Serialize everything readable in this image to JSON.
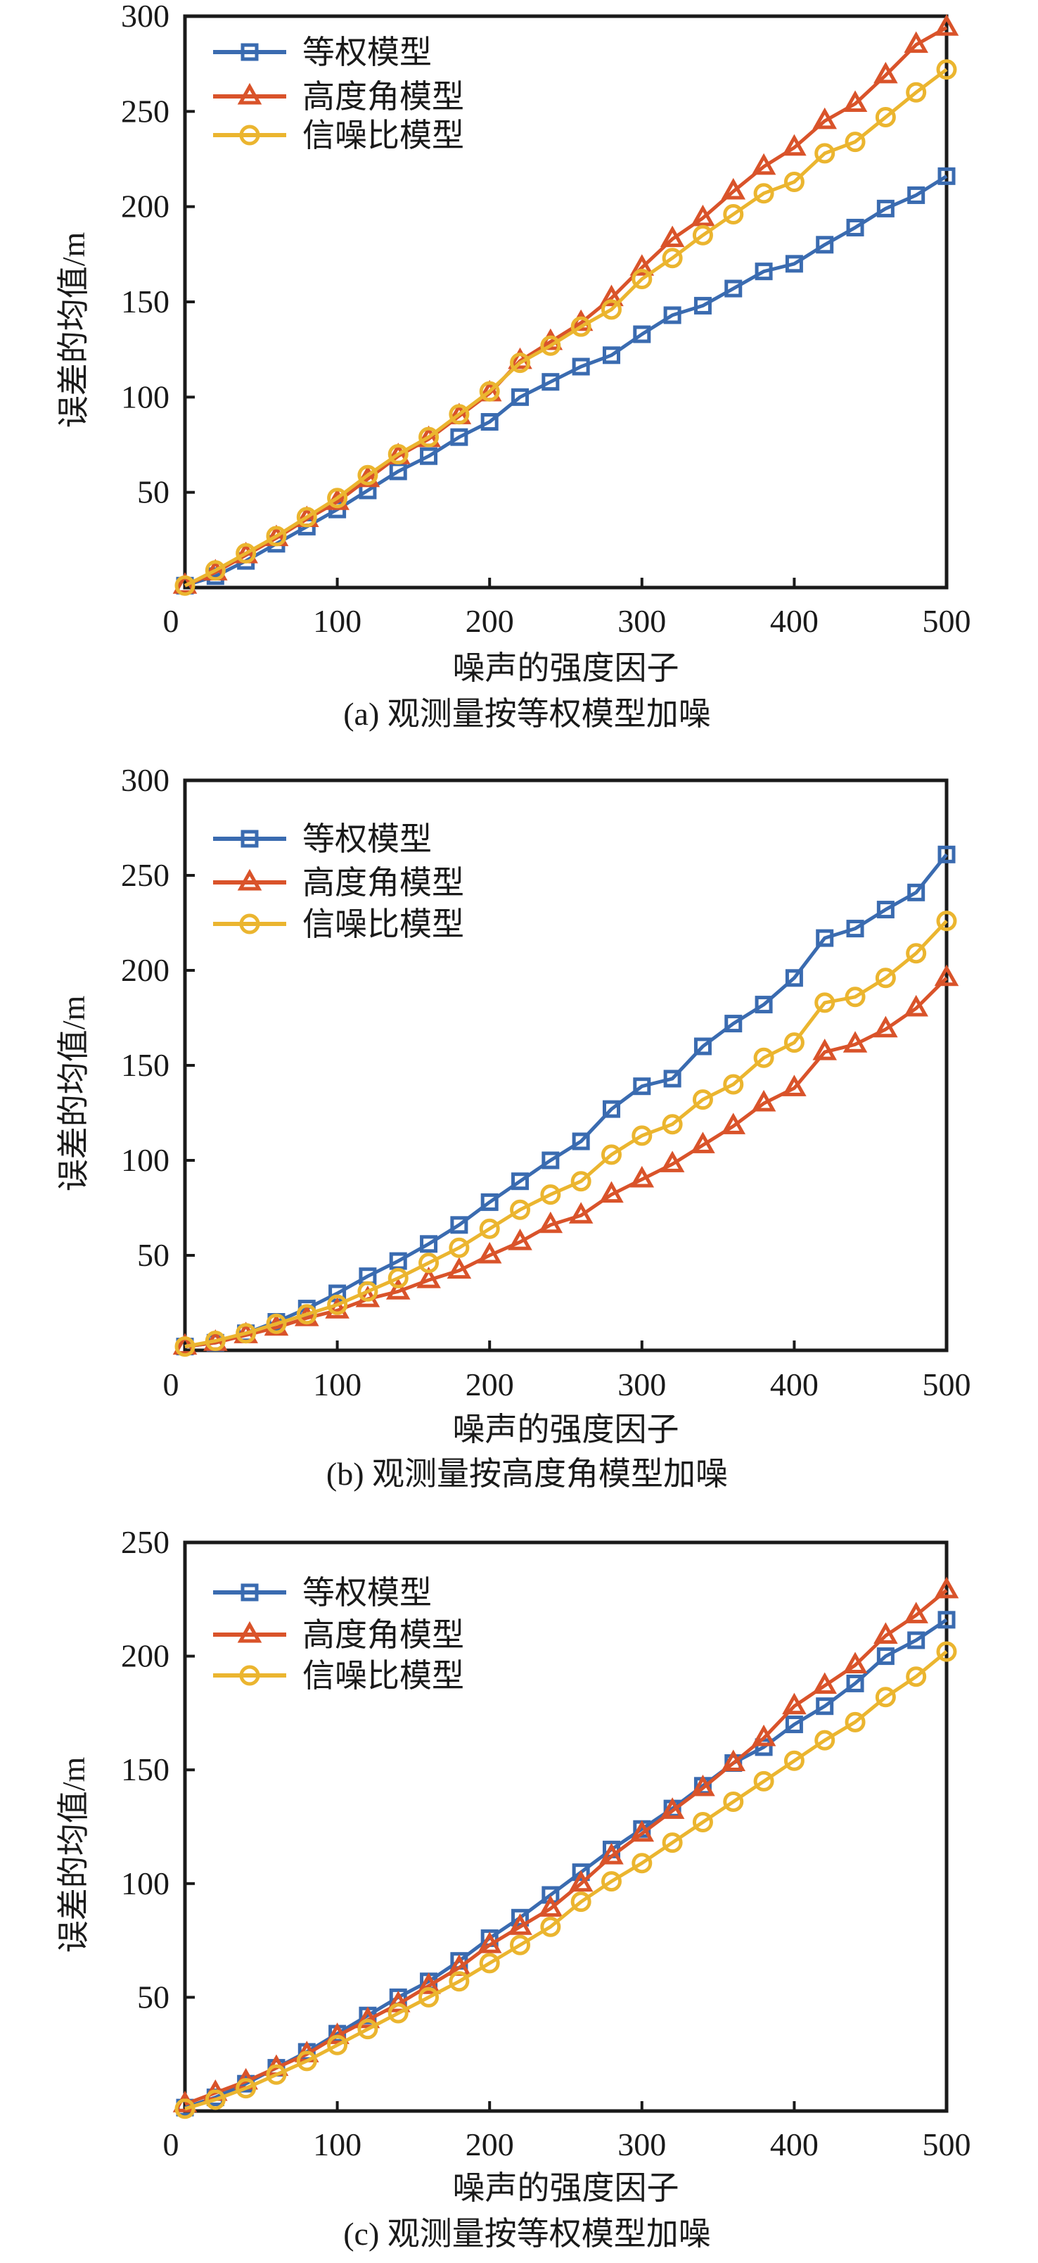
{
  "figure": {
    "panels": 3
  },
  "chart_data": [
    {
      "id": "a",
      "type": "line",
      "title": "",
      "caption": "(a) 观测量按等权模型加噪",
      "xlabel": "噪声的强度因子",
      "ylabel": "误差的均值/m",
      "xlim": [
        0,
        500
      ],
      "ylim": [
        0,
        300
      ],
      "xticks": [
        0,
        100,
        200,
        300,
        400,
        500
      ],
      "yticks": [
        50,
        100,
        150,
        200,
        250,
        300
      ],
      "grid": false,
      "legend_position": "top-left",
      "x": [
        0,
        20,
        40,
        60,
        80,
        100,
        120,
        140,
        160,
        180,
        200,
        220,
        240,
        260,
        280,
        300,
        320,
        340,
        360,
        380,
        400,
        420,
        440,
        460,
        480,
        500
      ],
      "series": [
        {
          "name": "等权模型",
          "marker": "square",
          "color": "#3a6bb0",
          "values": [
            1,
            6,
            14,
            23,
            32,
            41,
            51,
            61,
            69,
            79,
            87,
            100,
            108,
            116,
            122,
            133,
            143,
            148,
            157,
            166,
            170,
            180,
            189,
            199,
            206,
            216
          ]
        },
        {
          "name": "高度角模型",
          "marker": "triangle",
          "color": "#d9532a",
          "values": [
            1,
            8,
            17,
            26,
            36,
            45,
            57,
            69,
            78,
            90,
            102,
            119,
            129,
            139,
            152,
            168,
            183,
            194,
            208,
            221,
            231,
            245,
            254,
            269,
            285,
            294
          ]
        },
        {
          "name": "信噪比模型",
          "marker": "circle",
          "color": "#ebb52f",
          "values": [
            1,
            9,
            18,
            27,
            37,
            47,
            59,
            70,
            79,
            91,
            103,
            118,
            127,
            137,
            146,
            162,
            173,
            185,
            196,
            207,
            213,
            228,
            234,
            247,
            260,
            272
          ]
        }
      ]
    },
    {
      "id": "b",
      "type": "line",
      "title": "",
      "caption": "(b) 观测量按高度角模型加噪",
      "xlabel": "噪声的强度因子",
      "ylabel": "误差的均值/m",
      "xlim": [
        0,
        500
      ],
      "ylim": [
        0,
        300
      ],
      "xticks": [
        0,
        100,
        200,
        300,
        400,
        500
      ],
      "yticks": [
        50,
        100,
        150,
        200,
        250,
        300
      ],
      "grid": false,
      "legend_position": "top-left",
      "x": [
        0,
        20,
        40,
        60,
        80,
        100,
        120,
        140,
        160,
        180,
        200,
        220,
        240,
        260,
        280,
        300,
        320,
        340,
        360,
        380,
        400,
        420,
        440,
        460,
        480,
        500
      ],
      "series": [
        {
          "name": "等权模型",
          "marker": "square",
          "color": "#3a6bb0",
          "values": [
            2,
            4,
            9,
            15,
            22,
            30,
            39,
            47,
            56,
            66,
            78,
            89,
            100,
            110,
            127,
            139,
            143,
            160,
            172,
            182,
            196,
            217,
            222,
            232,
            241,
            261
          ]
        },
        {
          "name": "高度角模型",
          "marker": "triangle",
          "color": "#d9532a",
          "values": [
            2,
            4,
            8,
            12,
            17,
            21,
            27,
            31,
            37,
            42,
            50,
            57,
            66,
            71,
            82,
            90,
            98,
            108,
            118,
            130,
            138,
            157,
            161,
            169,
            180,
            196
          ]
        },
        {
          "name": "信噪比模型",
          "marker": "circle",
          "color": "#ebb52f",
          "values": [
            2,
            5,
            9,
            14,
            19,
            24,
            31,
            38,
            46,
            54,
            64,
            74,
            82,
            89,
            103,
            113,
            119,
            132,
            140,
            154,
            162,
            183,
            186,
            196,
            209,
            226
          ]
        }
      ]
    },
    {
      "id": "c",
      "type": "line",
      "title": "",
      "caption": "(c) 观测量按等权模型加噪",
      "xlabel": "噪声的强度因子",
      "ylabel": "误差的均值/m",
      "xlim": [
        0,
        500
      ],
      "ylim": [
        0,
        250
      ],
      "xticks": [
        0,
        100,
        200,
        300,
        400,
        500
      ],
      "yticks": [
        50,
        100,
        150,
        200,
        250
      ],
      "grid": false,
      "legend_position": "top-left",
      "x": [
        0,
        20,
        40,
        60,
        80,
        100,
        120,
        140,
        160,
        180,
        200,
        220,
        240,
        260,
        280,
        300,
        320,
        340,
        360,
        380,
        400,
        420,
        440,
        460,
        480,
        500
      ],
      "series": [
        {
          "name": "等权模型",
          "marker": "square",
          "color": "#3a6bb0",
          "values": [
            1.5,
            6,
            12,
            19,
            26,
            34,
            42,
            50,
            57,
            66,
            76,
            85,
            95,
            105,
            115,
            124,
            133,
            143,
            153,
            160,
            170,
            178,
            188,
            200,
            207,
            216
          ]
        },
        {
          "name": "高度角模型",
          "marker": "triangle",
          "color": "#d9532a",
          "values": [
            3,
            8,
            13,
            19,
            25,
            33,
            40,
            47,
            55,
            63,
            73,
            81,
            89,
            100,
            112,
            122,
            132,
            142,
            153,
            164,
            178,
            187,
            196,
            209,
            218,
            229
          ]
        },
        {
          "name": "信噪比模型",
          "marker": "circle",
          "color": "#ebb52f",
          "values": [
            1,
            5,
            10,
            16,
            22,
            29,
            36,
            43,
            50,
            57,
            65,
            73,
            81,
            92,
            101,
            109,
            118,
            127,
            136,
            145,
            154,
            163,
            171,
            182,
            191,
            202
          ]
        }
      ]
    }
  ]
}
